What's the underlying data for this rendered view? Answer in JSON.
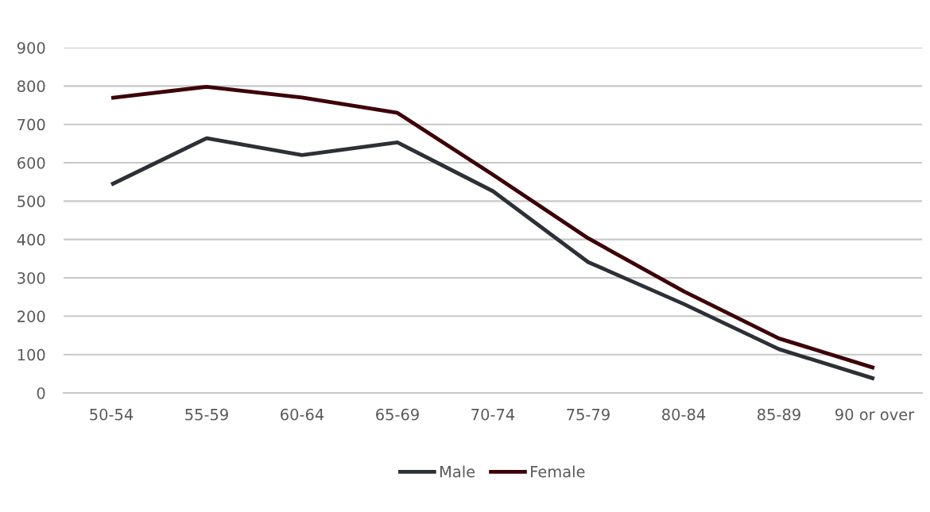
{
  "chart_data": {
    "type": "line",
    "categories": [
      "50-54",
      "55-59",
      "60-64",
      "65-69",
      "70-74",
      "75-79",
      "80-84",
      "85-89",
      "90 or over"
    ],
    "series": [
      {
        "name": "Male",
        "color": "#2d3037",
        "values": [
          543,
          664,
          620,
          653,
          526,
          341,
          232,
          114,
          37
        ]
      },
      {
        "name": "Female",
        "color": "#3d0008",
        "values": [
          769,
          798,
          770,
          730,
          569,
          403,
          265,
          142,
          65
        ]
      }
    ],
    "ylim": [
      0,
      900
    ],
    "yticks": [
      0,
      100,
      200,
      300,
      400,
      500,
      600,
      700,
      800,
      900
    ],
    "grid": "y",
    "legend": "bottom",
    "marker": "none",
    "line_style": "solid"
  }
}
